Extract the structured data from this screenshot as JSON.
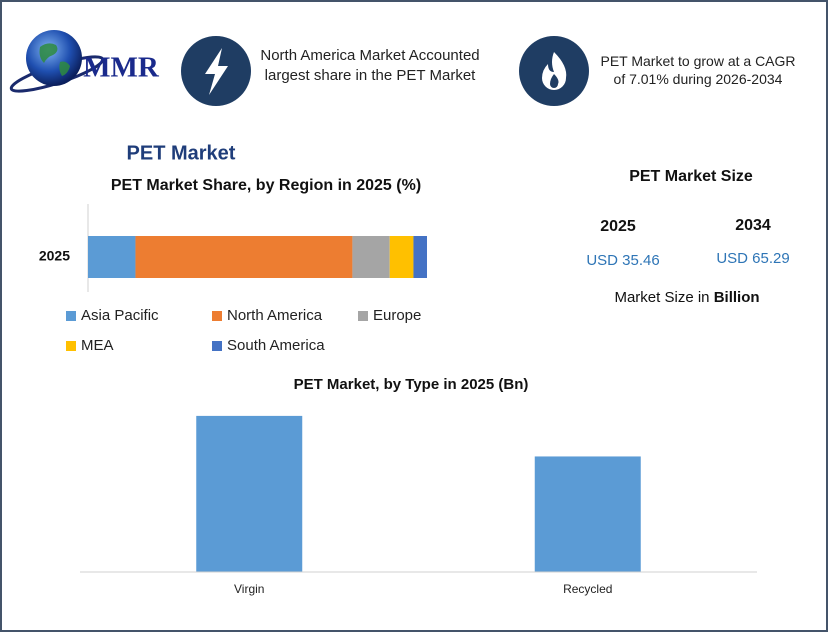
{
  "header": {
    "logo_text": "MMR",
    "note_left": "North America Market Accounted largest share in the PET Market",
    "note_right": "PET Market to grow at a CAGR of 7.01% during 2026-2034"
  },
  "title": "PET Market",
  "chart_data": [
    {
      "type": "stacked_bar",
      "title": "PET Market Share, by Region in 2025 (%)",
      "categories": [
        "2025"
      ],
      "xlim": [
        0,
        100
      ],
      "series": [
        {
          "name": "Asia Pacific",
          "color": "#5b9bd5",
          "values": [
            14
          ]
        },
        {
          "name": "North America",
          "color": "#ed7d31",
          "values": [
            64
          ]
        },
        {
          "name": "Europe",
          "color": "#a5a5a5",
          "values": [
            11
          ]
        },
        {
          "name": "MEA",
          "color": "#ffc000",
          "values": [
            7
          ]
        },
        {
          "name": "South America",
          "color": "#4472c4",
          "values": [
            4
          ]
        }
      ]
    },
    {
      "type": "bar",
      "title": "PET Market, by Type in 2025 (Bn)",
      "categories": [
        "Virgin",
        "Recycled"
      ],
      "values": [
        20.4,
        15.1
      ],
      "color": "#5b9bd5",
      "ylim": [
        0,
        23
      ]
    }
  ],
  "market_size": {
    "title": "PET Market Size",
    "year_start": "2025",
    "year_end": "2034",
    "value_start": "USD 35.46",
    "value_end": "USD 65.29",
    "unit_prefix": "Market Size in",
    "unit": "Billion"
  }
}
